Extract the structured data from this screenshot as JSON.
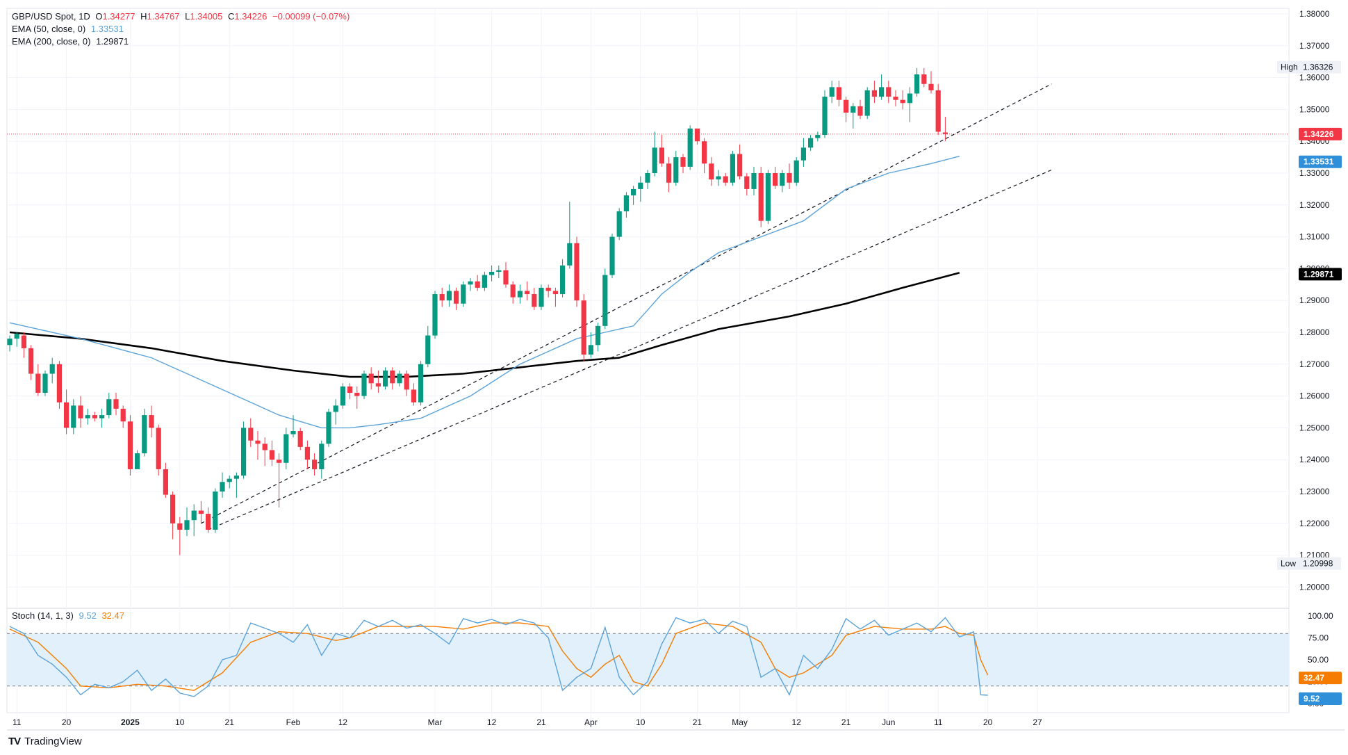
{
  "header": {
    "symbol": "GBP/USD Spot, 1D",
    "ohlc_labels": {
      "o": "O",
      "h": "H",
      "l": "L",
      "c": "C"
    },
    "open": "1.34277",
    "high": "1.34767",
    "low": "1.34005",
    "close": "1.34226",
    "change": "−0.00099 (−0.07%)",
    "ema50_label": "EMA (50, close, 0)",
    "ema50_value": "1.33531",
    "ema200_label": "EMA (200, close, 0)",
    "ema200_value": "1.29871"
  },
  "oscillator": {
    "label": "Stoch (14, 1, 3)",
    "k_value": "9.52",
    "d_value": "32.47"
  },
  "price_axis": {
    "ticks": [
      "1.38000",
      "1.37000",
      "1.36000",
      "1.35000",
      "1.34000",
      "1.33000",
      "1.32000",
      "1.31000",
      "1.30000",
      "1.29000",
      "1.28000",
      "1.27000",
      "1.26000",
      "1.25000",
      "1.24000",
      "1.23000",
      "1.22000",
      "1.21000",
      "1.20000"
    ],
    "high_label": "High",
    "high_value": "1.36326",
    "low_label": "Low",
    "low_value": "1.20998",
    "last_price": "1.34226",
    "ema50_tag": "1.33531",
    "ema200_tag": "1.29871"
  },
  "osc_axis": {
    "ticks": [
      "100.00",
      "75.00",
      "50.00",
      "25.00",
      "0.00"
    ]
  },
  "time_axis": {
    "labels": [
      "11",
      "20",
      "2025",
      "10",
      "21",
      "Feb",
      "12",
      "Mar",
      "12",
      "21",
      "Apr",
      "10",
      "21",
      "May",
      "12",
      "21",
      "Jun",
      "11",
      "20",
      "27"
    ]
  },
  "brand": {
    "name": "TradingView",
    "logo": "TV"
  },
  "colors": {
    "up": "#089981",
    "down": "#f23645",
    "ema50": "#5ba3d9",
    "ema200": "#000000",
    "stoch_k": "#5ba3d9",
    "stoch_d": "#f57c00",
    "band": "#e1f0fa"
  },
  "chart_data": {
    "type": "candlestick",
    "price_range": [
      1.195,
      1.383
    ],
    "osc_range": [
      0,
      100
    ],
    "candles": [
      [
        1.276,
        1.279,
        1.274,
        1.278
      ],
      [
        1.278,
        1.28,
        1.2755,
        1.2795
      ],
      [
        1.279,
        1.28,
        1.272,
        1.275
      ],
      [
        1.275,
        1.276,
        1.265,
        1.267
      ],
      [
        1.267,
        1.27,
        1.26,
        1.261
      ],
      [
        1.261,
        1.268,
        1.26,
        1.267
      ],
      [
        1.267,
        1.272,
        1.264,
        1.27
      ],
      [
        1.27,
        1.271,
        1.256,
        1.258
      ],
      [
        1.258,
        1.262,
        1.248,
        1.25
      ],
      [
        1.25,
        1.259,
        1.248,
        1.257
      ],
      [
        1.257,
        1.26,
        1.25,
        1.253
      ],
      [
        1.253,
        1.256,
        1.251,
        1.254
      ],
      [
        1.254,
        1.255,
        1.252,
        1.253
      ],
      [
        1.253,
        1.256,
        1.25,
        1.254
      ],
      [
        1.254,
        1.261,
        1.253,
        1.259
      ],
      [
        1.259,
        1.261,
        1.254,
        1.256
      ],
      [
        1.256,
        1.257,
        1.25,
        1.252
      ],
      [
        1.252,
        1.254,
        1.235,
        1.237
      ],
      [
        1.237,
        1.243,
        1.237,
        1.242
      ],
      [
        1.242,
        1.256,
        1.241,
        1.254
      ],
      [
        1.254,
        1.257,
        1.247,
        1.25
      ],
      [
        1.25,
        1.251,
        1.235,
        1.237
      ],
      [
        1.237,
        1.239,
        1.228,
        1.229
      ],
      [
        1.229,
        1.23,
        1.215,
        1.22
      ],
      [
        1.22,
        1.222,
        1.21,
        1.218
      ],
      [
        1.218,
        1.225,
        1.216,
        1.221
      ],
      [
        1.221,
        1.226,
        1.216,
        1.224
      ],
      [
        1.224,
        1.227,
        1.22,
        1.223
      ],
      [
        1.223,
        1.225,
        1.217,
        1.218
      ],
      [
        1.218,
        1.231,
        1.217,
        1.23
      ],
      [
        1.23,
        1.236,
        1.228,
        1.233
      ],
      [
        1.233,
        1.235,
        1.231,
        1.234
      ],
      [
        1.234,
        1.236,
        1.228,
        1.235
      ],
      [
        1.235,
        1.252,
        1.234,
        1.25
      ],
      [
        1.25,
        1.253,
        1.244,
        1.246
      ],
      [
        1.246,
        1.249,
        1.24,
        1.245
      ],
      [
        1.245,
        1.247,
        1.238,
        1.243
      ],
      [
        1.243,
        1.246,
        1.238,
        1.24
      ],
      [
        1.24,
        1.242,
        1.225,
        1.239
      ],
      [
        1.239,
        1.25,
        1.237,
        1.248
      ],
      [
        1.248,
        1.254,
        1.247,
        1.249
      ],
      [
        1.249,
        1.25,
        1.243,
        1.244
      ],
      [
        1.244,
        1.246,
        1.237,
        1.24
      ],
      [
        1.24,
        1.242,
        1.235,
        1.237
      ],
      [
        1.237,
        1.246,
        1.234,
        1.245
      ],
      [
        1.245,
        1.256,
        1.244,
        1.255
      ],
      [
        1.255,
        1.259,
        1.251,
        1.257
      ],
      [
        1.257,
        1.264,
        1.256,
        1.263
      ],
      [
        1.263,
        1.264,
        1.259,
        1.261
      ],
      [
        1.261,
        1.263,
        1.256,
        1.26
      ],
      [
        1.26,
        1.268,
        1.259,
        1.267
      ],
      [
        1.267,
        1.269,
        1.262,
        1.264
      ],
      [
        1.264,
        1.268,
        1.261,
        1.263
      ],
      [
        1.263,
        1.269,
        1.262,
        1.268
      ],
      [
        1.268,
        1.269,
        1.262,
        1.264
      ],
      [
        1.264,
        1.268,
        1.263,
        1.267
      ],
      [
        1.267,
        1.268,
        1.26,
        1.262
      ],
      [
        1.262,
        1.264,
        1.257,
        1.258
      ],
      [
        1.258,
        1.271,
        1.257,
        1.27
      ],
      [
        1.27,
        1.282,
        1.269,
        1.279
      ],
      [
        1.279,
        1.293,
        1.278,
        1.292
      ],
      [
        1.292,
        1.294,
        1.288,
        1.29
      ],
      [
        1.29,
        1.295,
        1.288,
        1.293
      ],
      [
        1.293,
        1.294,
        1.287,
        1.289
      ],
      [
        1.289,
        1.296,
        1.288,
        1.295
      ],
      [
        1.295,
        1.297,
        1.293,
        1.296
      ],
      [
        1.296,
        1.298,
        1.293,
        1.294
      ],
      [
        1.294,
        1.299,
        1.293,
        1.298
      ],
      [
        1.298,
        1.301,
        1.296,
        1.299
      ],
      [
        1.299,
        1.301,
        1.297,
        1.2995
      ],
      [
        1.2995,
        1.302,
        1.294,
        1.295
      ],
      [
        1.295,
        1.296,
        1.289,
        1.291
      ],
      [
        1.291,
        1.295,
        1.289,
        1.293
      ],
      [
        1.293,
        1.296,
        1.29,
        1.292
      ],
      [
        1.292,
        1.294,
        1.287,
        1.288
      ],
      [
        1.288,
        1.295,
        1.287,
        1.294
      ],
      [
        1.294,
        1.295,
        1.291,
        1.293
      ],
      [
        1.293,
        1.294,
        1.288,
        1.292
      ],
      [
        1.292,
        1.303,
        1.291,
        1.301
      ],
      [
        1.301,
        1.321,
        1.3,
        1.308
      ],
      [
        1.308,
        1.31,
        1.288,
        1.29
      ],
      [
        1.29,
        1.292,
        1.271,
        1.273
      ],
      [
        1.273,
        1.28,
        1.272,
        1.276
      ],
      [
        1.276,
        1.283,
        1.274,
        1.282
      ],
      [
        1.282,
        1.3,
        1.281,
        1.298
      ],
      [
        1.298,
        1.311,
        1.297,
        1.31
      ],
      [
        1.31,
        1.319,
        1.309,
        1.318
      ],
      [
        1.318,
        1.324,
        1.316,
        1.323
      ],
      [
        1.323,
        1.326,
        1.32,
        1.325
      ],
      [
        1.325,
        1.329,
        1.321,
        1.327
      ],
      [
        1.327,
        1.331,
        1.325,
        1.33
      ],
      [
        1.33,
        1.343,
        1.329,
        1.338
      ],
      [
        1.338,
        1.342,
        1.332,
        1.333
      ],
      [
        1.333,
        1.335,
        1.324,
        1.327
      ],
      [
        1.327,
        1.337,
        1.326,
        1.335
      ],
      [
        1.335,
        1.336,
        1.33,
        1.332
      ],
      [
        1.332,
        1.345,
        1.331,
        1.344
      ],
      [
        1.344,
        1.344,
        1.339,
        1.34
      ],
      [
        1.34,
        1.341,
        1.33,
        1.333
      ],
      [
        1.333,
        1.335,
        1.326,
        1.328
      ],
      [
        1.328,
        1.331,
        1.326,
        1.329
      ],
      [
        1.329,
        1.33,
        1.326,
        1.327
      ],
      [
        1.327,
        1.337,
        1.326,
        1.336
      ],
      [
        1.336,
        1.339,
        1.328,
        1.329
      ],
      [
        1.329,
        1.33,
        1.323,
        1.325
      ],
      [
        1.325,
        1.332,
        1.323,
        1.33
      ],
      [
        1.33,
        1.332,
        1.313,
        1.315
      ],
      [
        1.315,
        1.331,
        1.314,
        1.33
      ],
      [
        1.33,
        1.332,
        1.325,
        1.326
      ],
      [
        1.326,
        1.331,
        1.324,
        1.33
      ],
      [
        1.33,
        1.333,
        1.325,
        1.327
      ],
      [
        1.327,
        1.335,
        1.326,
        1.334
      ],
      [
        1.334,
        1.341,
        1.332,
        1.338
      ],
      [
        1.338,
        1.342,
        1.337,
        1.341
      ],
      [
        1.341,
        1.343,
        1.34,
        1.342
      ],
      [
        1.342,
        1.356,
        1.341,
        1.354
      ],
      [
        1.354,
        1.359,
        1.352,
        1.357
      ],
      [
        1.357,
        1.359,
        1.351,
        1.353
      ],
      [
        1.353,
        1.354,
        1.346,
        1.349
      ],
      [
        1.349,
        1.352,
        1.344,
        1.351
      ],
      [
        1.351,
        1.353,
        1.347,
        1.348
      ],
      [
        1.348,
        1.357,
        1.347,
        1.356
      ],
      [
        1.356,
        1.359,
        1.352,
        1.354
      ],
      [
        1.354,
        1.361,
        1.353,
        1.357
      ],
      [
        1.357,
        1.359,
        1.352,
        1.354
      ],
      [
        1.354,
        1.356,
        1.351,
        1.353
      ],
      [
        1.353,
        1.356,
        1.35,
        1.352
      ],
      [
        1.352,
        1.357,
        1.346,
        1.355
      ],
      [
        1.355,
        1.363,
        1.354,
        1.361
      ],
      [
        1.361,
        1.363,
        1.357,
        1.358
      ],
      [
        1.358,
        1.362,
        1.355,
        1.356
      ],
      [
        1.356,
        1.358,
        1.342,
        1.343
      ],
      [
        1.34277,
        1.34767,
        1.34005,
        1.34226
      ]
    ],
    "ema50": [
      [
        0,
        1.283
      ],
      [
        10,
        1.278
      ],
      [
        20,
        1.272
      ],
      [
        30,
        1.262
      ],
      [
        38,
        1.254
      ],
      [
        44,
        1.25
      ],
      [
        48,
        1.25
      ],
      [
        52,
        1.251
      ],
      [
        58,
        1.253
      ],
      [
        65,
        1.26
      ],
      [
        72,
        1.27
      ],
      [
        80,
        1.278
      ],
      [
        84,
        1.28
      ],
      [
        88,
        1.282
      ],
      [
        92,
        1.292
      ],
      [
        96,
        1.299
      ],
      [
        100,
        1.305
      ],
      [
        106,
        1.31
      ],
      [
        112,
        1.315
      ],
      [
        118,
        1.325
      ],
      [
        124,
        1.33
      ],
      [
        130,
        1.333
      ],
      [
        134,
        1.3353
      ]
    ],
    "ema200": [
      [
        0,
        1.28
      ],
      [
        10,
        1.278
      ],
      [
        20,
        1.275
      ],
      [
        30,
        1.271
      ],
      [
        40,
        1.268
      ],
      [
        48,
        1.266
      ],
      [
        56,
        1.266
      ],
      [
        64,
        1.267
      ],
      [
        72,
        1.269
      ],
      [
        80,
        1.271
      ],
      [
        86,
        1.272
      ],
      [
        92,
        1.276
      ],
      [
        100,
        1.281
      ],
      [
        110,
        1.285
      ],
      [
        118,
        1.289
      ],
      [
        126,
        1.294
      ],
      [
        134,
        1.2987
      ]
    ],
    "trendlines": [
      {
        "x1": 27,
        "y1": 1.22,
        "x2": 147,
        "y2": 1.358
      },
      {
        "x1": 28,
        "y1": 1.218,
        "x2": 147,
        "y2": 1.331
      }
    ],
    "stoch_k": [
      [
        0,
        88
      ],
      [
        2,
        80
      ],
      [
        4,
        55
      ],
      [
        6,
        45
      ],
      [
        8,
        30
      ],
      [
        10,
        10
      ],
      [
        12,
        22
      ],
      [
        14,
        18
      ],
      [
        16,
        25
      ],
      [
        18,
        38
      ],
      [
        20,
        15
      ],
      [
        22,
        28
      ],
      [
        24,
        12
      ],
      [
        26,
        8
      ],
      [
        28,
        20
      ],
      [
        30,
        50
      ],
      [
        32,
        55
      ],
      [
        34,
        92
      ],
      [
        36,
        86
      ],
      [
        38,
        80
      ],
      [
        40,
        70
      ],
      [
        42,
        90
      ],
      [
        44,
        55
      ],
      [
        46,
        80
      ],
      [
        48,
        75
      ],
      [
        50,
        95
      ],
      [
        52,
        88
      ],
      [
        54,
        95
      ],
      [
        56,
        86
      ],
      [
        58,
        90
      ],
      [
        60,
        80
      ],
      [
        62,
        68
      ],
      [
        64,
        97
      ],
      [
        66,
        92
      ],
      [
        68,
        96
      ],
      [
        70,
        90
      ],
      [
        72,
        96
      ],
      [
        74,
        92
      ],
      [
        76,
        75
      ],
      [
        78,
        15
      ],
      [
        80,
        30
      ],
      [
        82,
        40
      ],
      [
        84,
        87
      ],
      [
        86,
        30
      ],
      [
        88,
        10
      ],
      [
        90,
        25
      ],
      [
        92,
        68
      ],
      [
        94,
        98
      ],
      [
        96,
        92
      ],
      [
        98,
        96
      ],
      [
        100,
        80
      ],
      [
        102,
        94
      ],
      [
        104,
        88
      ],
      [
        106,
        30
      ],
      [
        108,
        40
      ],
      [
        110,
        10
      ],
      [
        112,
        55
      ],
      [
        114,
        40
      ],
      [
        116,
        62
      ],
      [
        118,
        97
      ],
      [
        120,
        85
      ],
      [
        122,
        95
      ],
      [
        124,
        78
      ],
      [
        126,
        85
      ],
      [
        128,
        92
      ],
      [
        130,
        82
      ],
      [
        132,
        98
      ],
      [
        134,
        76
      ],
      [
        136,
        82
      ],
      [
        137,
        10
      ],
      [
        138,
        9.52
      ]
    ],
    "stoch_d": [
      [
        0,
        85
      ],
      [
        4,
        70
      ],
      [
        8,
        40
      ],
      [
        10,
        20
      ],
      [
        14,
        18
      ],
      [
        18,
        22
      ],
      [
        22,
        20
      ],
      [
        26,
        15
      ],
      [
        30,
        35
      ],
      [
        34,
        70
      ],
      [
        38,
        82
      ],
      [
        42,
        80
      ],
      [
        46,
        72
      ],
      [
        48,
        75
      ],
      [
        52,
        88
      ],
      [
        56,
        88
      ],
      [
        60,
        88
      ],
      [
        64,
        85
      ],
      [
        68,
        92
      ],
      [
        72,
        92
      ],
      [
        76,
        88
      ],
      [
        78,
        60
      ],
      [
        80,
        40
      ],
      [
        82,
        30
      ],
      [
        84,
        45
      ],
      [
        86,
        55
      ],
      [
        88,
        25
      ],
      [
        90,
        20
      ],
      [
        92,
        45
      ],
      [
        94,
        80
      ],
      [
        98,
        92
      ],
      [
        102,
        88
      ],
      [
        106,
        70
      ],
      [
        108,
        40
      ],
      [
        110,
        30
      ],
      [
        112,
        35
      ],
      [
        114,
        45
      ],
      [
        116,
        55
      ],
      [
        118,
        78
      ],
      [
        122,
        88
      ],
      [
        126,
        85
      ],
      [
        130,
        85
      ],
      [
        132,
        88
      ],
      [
        134,
        80
      ],
      [
        136,
        78
      ],
      [
        137,
        50
      ],
      [
        138,
        32.47
      ]
    ]
  }
}
